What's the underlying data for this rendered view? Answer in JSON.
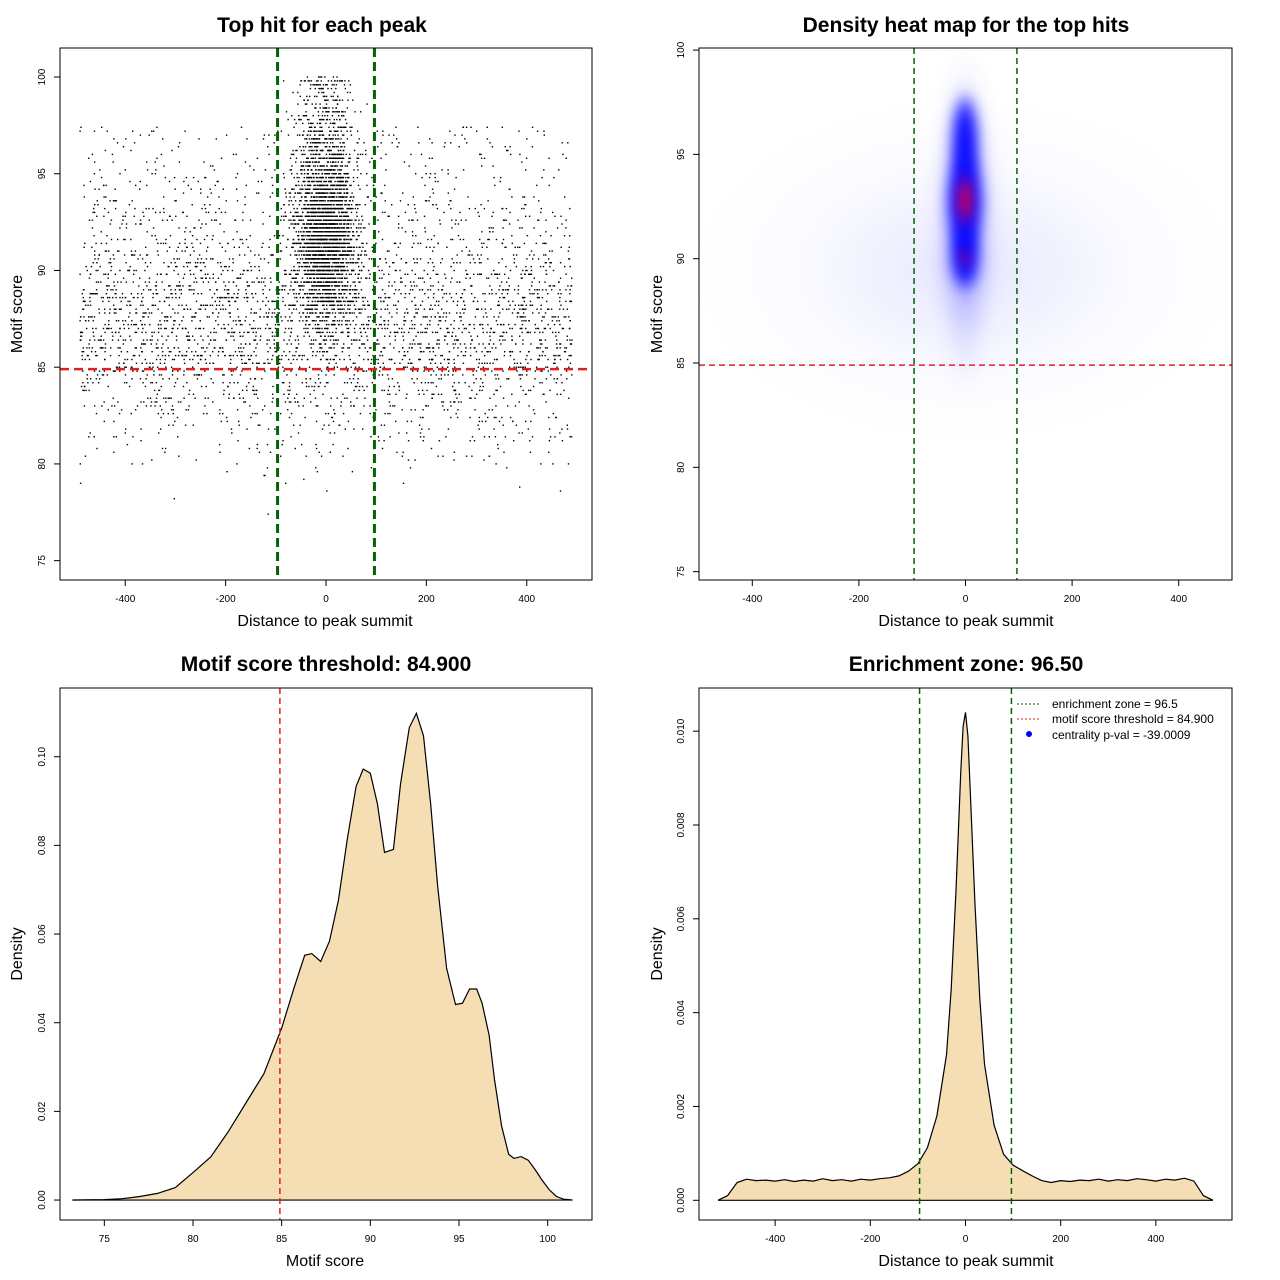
{
  "chart_data": [
    {
      "type": "scatter",
      "title": "Top hit for each peak",
      "xlabel": "Distance to peak summit",
      "ylabel": "Motif score",
      "xlim": [
        -530,
        530
      ],
      "ylim": [
        74,
        101.5
      ],
      "xticks": [
        -400,
        -200,
        0,
        200,
        400
      ],
      "xtick_labels": [
        "-400",
        "-200",
        "0",
        "200",
        "400"
      ],
      "yticks": [
        75,
        80,
        85,
        90,
        95,
        100
      ],
      "ytick_labels": [
        "75",
        "80",
        "85",
        "90",
        "95",
        "100"
      ],
      "vlines": [
        -96.5,
        96.5
      ],
      "hline": 84.9,
      "colors": {
        "points": "#000000",
        "zone": "#006400",
        "threshold": "#dd2222"
      }
    },
    {
      "type": "heatmap",
      "title": "Density heat map for the top hits",
      "xlabel": "Distance to peak summit",
      "ylabel": "Motif score",
      "xlim": [
        -500,
        500
      ],
      "ylim": [
        74.6,
        100.1
      ],
      "xticks": [
        -400,
        -200,
        0,
        200,
        400
      ],
      "xtick_labels": [
        "-400",
        "-200",
        "0",
        "200",
        "400"
      ],
      "yticks": [
        75,
        80,
        85,
        90,
        95,
        100
      ],
      "ytick_labels": [
        "75",
        "80",
        "85",
        "90",
        "95",
        "100"
      ],
      "vlines": [
        -96.5,
        96.5
      ],
      "hline": 84.9,
      "colors": {
        "low": "#ffffff",
        "mid": "#0000ff",
        "high": "#ff0000",
        "zone": "#006400",
        "threshold": "#dd2222"
      }
    },
    {
      "type": "area",
      "title": "Motif score threshold: 84.900",
      "xlabel": "Motif score",
      "ylabel": "Density",
      "xlim": [
        72.5,
        102.5
      ],
      "ylim": [
        -0.0045,
        0.1155
      ],
      "xticks": [
        75,
        80,
        85,
        90,
        95,
        100
      ],
      "xtick_labels": [
        "75",
        "80",
        "85",
        "90",
        "95",
        "100"
      ],
      "yticks": [
        0,
        0.02,
        0.04,
        0.06,
        0.08,
        0.1
      ],
      "ytick_labels": [
        "0.00",
        "0.02",
        "0.04",
        "0.06",
        "0.08",
        "0.10"
      ],
      "vline": 84.9,
      "x": [
        73.2,
        75,
        76,
        77,
        78,
        79,
        80,
        81,
        82,
        83,
        84,
        85,
        85.7,
        86.3,
        86.7,
        87.2,
        87.7,
        88.2,
        88.7,
        89.2,
        89.6,
        90,
        90.4,
        90.8,
        91.3,
        91.7,
        92.2,
        92.6,
        93,
        93.4,
        93.8,
        94.3,
        94.8,
        95.2,
        95.6,
        96,
        96.3,
        96.7,
        97,
        97.4,
        97.8,
        98.1,
        98.5,
        98.9,
        99.3,
        99.7,
        100.1,
        100.5,
        100.9,
        101.4
      ],
      "y": [
        0,
        0.0001,
        0.0003,
        0.0008,
        0.0015,
        0.0028,
        0.0062,
        0.0097,
        0.0155,
        0.022,
        0.0285,
        0.0388,
        0.0479,
        0.0552,
        0.0556,
        0.0538,
        0.0584,
        0.0676,
        0.0814,
        0.0933,
        0.0972,
        0.0963,
        0.0894,
        0.0784,
        0.0791,
        0.0938,
        0.1066,
        0.1098,
        0.1047,
        0.0895,
        0.0707,
        0.0523,
        0.0441,
        0.0444,
        0.0476,
        0.0476,
        0.0444,
        0.0372,
        0.0272,
        0.0167,
        0.0103,
        0.0094,
        0.0098,
        0.009,
        0.0068,
        0.0044,
        0.0023,
        0.0008,
        0.0002,
        0
      ],
      "colors": {
        "fill": "#f5deb3",
        "line": "#000000",
        "threshold": "#dd2222"
      }
    },
    {
      "type": "area",
      "title": "Enrichment zone: 96.50",
      "xlabel": "Distance to peak summit",
      "ylabel": "Density",
      "xlim": [
        -560,
        560
      ],
      "ylim": [
        -0.00042,
        0.01092
      ],
      "xticks": [
        -400,
        -200,
        0,
        200,
        400
      ],
      "xtick_labels": [
        "-400",
        "-200",
        "0",
        "200",
        "400"
      ],
      "yticks": [
        0,
        0.002,
        0.004,
        0.006,
        0.008,
        0.01
      ],
      "ytick_labels": [
        "0.000",
        "0.002",
        "0.004",
        "0.006",
        "0.008",
        "0.010"
      ],
      "vlines": [
        -96.5,
        96.5
      ],
      "x": [
        -520,
        -500,
        -480,
        -460,
        -440,
        -420,
        -400,
        -380,
        -360,
        -340,
        -320,
        -300,
        -280,
        -260,
        -240,
        -220,
        -200,
        -180,
        -160,
        -140,
        -120,
        -100,
        -80,
        -60,
        -40,
        -30,
        -20,
        -10,
        -5,
        0,
        5,
        10,
        20,
        30,
        40,
        60,
        80,
        100,
        120,
        140,
        160,
        180,
        200,
        220,
        240,
        260,
        280,
        300,
        320,
        340,
        360,
        380,
        400,
        420,
        440,
        460,
        480,
        500,
        520
      ],
      "y": [
        0,
        0.0001,
        0.00038,
        0.00045,
        0.00042,
        0.00043,
        0.00041,
        0.00044,
        0.0004,
        0.00043,
        0.00041,
        0.00046,
        0.00042,
        0.00044,
        0.00041,
        0.00045,
        0.00043,
        0.00046,
        0.00048,
        0.00052,
        0.00062,
        0.00078,
        0.00112,
        0.0018,
        0.0031,
        0.0045,
        0.0066,
        0.0091,
        0.0101,
        0.0104,
        0.0099,
        0.0087,
        0.0063,
        0.0043,
        0.0029,
        0.0016,
        0.00098,
        0.00075,
        0.00063,
        0.00052,
        0.00042,
        0.00038,
        0.00042,
        0.0004,
        0.00043,
        0.00042,
        0.00045,
        0.00041,
        0.00044,
        0.00042,
        0.00046,
        0.00044,
        0.00041,
        0.00045,
        0.00043,
        0.00047,
        0.00041,
        0.0001,
        0
      ],
      "legend": {
        "position": "top-right",
        "entries": [
          {
            "label": "enrichment zone = 96.5",
            "style": "dotted-line",
            "color": "#006400"
          },
          {
            "label": "motif score threshold = 84.900",
            "style": "dotted-line",
            "color": "#dd2222"
          },
          {
            "label": "centrality p-val = -39.0009",
            "style": "point",
            "color": "#0000ff"
          }
        ]
      },
      "colors": {
        "fill": "#f5deb3",
        "line": "#000000",
        "zone": "#006400"
      }
    }
  ]
}
